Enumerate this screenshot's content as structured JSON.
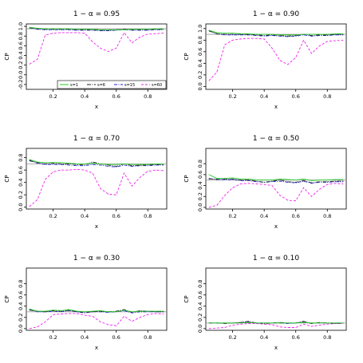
{
  "colors": {
    "s1": "#22cc22",
    "s6": "#222222",
    "s15": "#2222dd",
    "s60": "#ee22ee",
    "refline": "#9a9a9a",
    "axis": "#000000"
  },
  "chart_data": [
    {
      "type": "line",
      "title": "1 − α = 0.95",
      "xlabel": "x",
      "ylabel": "CP",
      "xlim": [
        0.03,
        0.92
      ],
      "ylim": [
        -0.3,
        1.05
      ],
      "yticks": [
        -0.2,
        0.0,
        0.2,
        0.4,
        0.6,
        0.8,
        1.0
      ],
      "ytick_labels": [
        "-0.2",
        "0.0",
        "0.2",
        "0.4",
        "0.6",
        "0.8",
        "1.0"
      ],
      "xticks": [
        0.2,
        0.4,
        0.6,
        0.8
      ],
      "xtick_labels": [
        "0.2",
        "0.4",
        "0.6",
        "0.8"
      ],
      "reference": 0.95,
      "legend": {
        "placement": "bottom-right",
        "entries": [
          {
            "series": "s1",
            "label": "s=1"
          },
          {
            "series": "s6",
            "label": "s=6"
          },
          {
            "series": "s15",
            "label": "s=15"
          },
          {
            "series": "s60",
            "label": "s=60"
          }
        ]
      },
      "x": [
        0.05,
        0.1,
        0.15,
        0.2,
        0.25,
        0.3,
        0.35,
        0.4,
        0.45,
        0.5,
        0.55,
        0.6,
        0.65,
        0.7,
        0.75,
        0.8,
        0.85,
        0.9
      ],
      "series": [
        {
          "key": "s1",
          "values": [
            0.98,
            0.96,
            0.95,
            0.95,
            0.95,
            0.95,
            0.94,
            0.94,
            0.94,
            0.93,
            0.93,
            0.93,
            0.93,
            0.94,
            0.94,
            0.94,
            0.95,
            0.95
          ]
        },
        {
          "key": "s6",
          "values": [
            0.97,
            0.95,
            0.94,
            0.94,
            0.94,
            0.94,
            0.93,
            0.93,
            0.93,
            0.92,
            0.92,
            0.93,
            0.94,
            0.93,
            0.93,
            0.93,
            0.94,
            0.94
          ]
        },
        {
          "key": "s15",
          "values": [
            0.97,
            0.94,
            0.93,
            0.93,
            0.93,
            0.93,
            0.92,
            0.92,
            0.92,
            0.91,
            0.91,
            0.92,
            0.93,
            0.92,
            0.92,
            0.92,
            0.93,
            0.93
          ]
        },
        {
          "key": "s60",
          "values": [
            0.22,
            0.32,
            0.82,
            0.86,
            0.87,
            0.87,
            0.87,
            0.86,
            0.68,
            0.55,
            0.48,
            0.55,
            0.87,
            0.66,
            0.78,
            0.84,
            0.85,
            0.86
          ]
        }
      ]
    },
    {
      "type": "line",
      "title": "1 − α = 0.90",
      "xlabel": "x",
      "ylabel": "CP",
      "xlim": [
        0.03,
        0.92
      ],
      "ylim": [
        -0.05,
        1.08
      ],
      "yticks": [
        0.0,
        0.2,
        0.4,
        0.6,
        0.8,
        1.0
      ],
      "ytick_labels": [
        "0.0",
        "0.2",
        "0.4",
        "0.6",
        "0.8",
        "1.0"
      ],
      "xticks": [
        0.2,
        0.4,
        0.6,
        0.8
      ],
      "xtick_labels": [
        "0.2",
        "0.4",
        "0.6",
        "0.8"
      ],
      "reference": 0.9,
      "x": [
        0.05,
        0.1,
        0.15,
        0.2,
        0.25,
        0.3,
        0.35,
        0.4,
        0.45,
        0.5,
        0.55,
        0.6,
        0.65,
        0.7,
        0.75,
        0.8,
        0.85,
        0.9
      ],
      "series": [
        {
          "key": "s1",
          "values": [
            0.97,
            0.93,
            0.92,
            0.92,
            0.91,
            0.91,
            0.9,
            0.9,
            0.9,
            0.89,
            0.89,
            0.89,
            0.9,
            0.9,
            0.9,
            0.9,
            0.91,
            0.91
          ]
        },
        {
          "key": "s6",
          "values": [
            0.96,
            0.91,
            0.9,
            0.9,
            0.9,
            0.9,
            0.89,
            0.88,
            0.89,
            0.88,
            0.87,
            0.88,
            0.9,
            0.88,
            0.89,
            0.89,
            0.9,
            0.9
          ]
        },
        {
          "key": "s15",
          "values": [
            0.96,
            0.91,
            0.89,
            0.89,
            0.89,
            0.89,
            0.88,
            0.87,
            0.88,
            0.87,
            0.86,
            0.87,
            0.89,
            0.87,
            0.88,
            0.88,
            0.89,
            0.89
          ]
        },
        {
          "key": "s60",
          "values": [
            0.1,
            0.25,
            0.72,
            0.8,
            0.82,
            0.83,
            0.83,
            0.82,
            0.66,
            0.45,
            0.38,
            0.5,
            0.8,
            0.57,
            0.7,
            0.78,
            0.79,
            0.8
          ]
        }
      ]
    },
    {
      "type": "line",
      "title": "1 − α = 0.70",
      "xlabel": "x",
      "ylabel": "CP",
      "xlim": [
        0.03,
        0.92
      ],
      "ylim": [
        -0.03,
        0.95
      ],
      "yticks": [
        0.0,
        0.2,
        0.4,
        0.6,
        0.8
      ],
      "ytick_labels": [
        "0.0",
        "0.2",
        "0.4",
        "0.6",
        "0.8"
      ],
      "xticks": [
        0.2,
        0.4,
        0.6,
        0.8
      ],
      "xtick_labels": [
        "0.2",
        "0.4",
        "0.6",
        "0.8"
      ],
      "reference": 0.7,
      "x": [
        0.05,
        0.1,
        0.15,
        0.2,
        0.25,
        0.3,
        0.35,
        0.4,
        0.45,
        0.5,
        0.55,
        0.6,
        0.65,
        0.7,
        0.75,
        0.8,
        0.85,
        0.9
      ],
      "series": [
        {
          "key": "s1",
          "values": [
            0.77,
            0.73,
            0.72,
            0.72,
            0.72,
            0.71,
            0.7,
            0.7,
            0.71,
            0.7,
            0.69,
            0.69,
            0.7,
            0.69,
            0.69,
            0.69,
            0.7,
            0.7
          ]
        },
        {
          "key": "s6",
          "values": [
            0.75,
            0.72,
            0.7,
            0.71,
            0.7,
            0.7,
            0.69,
            0.68,
            0.73,
            0.7,
            0.68,
            0.66,
            0.7,
            0.67,
            0.68,
            0.68,
            0.69,
            0.69
          ]
        },
        {
          "key": "s15",
          "values": [
            0.76,
            0.71,
            0.69,
            0.69,
            0.69,
            0.68,
            0.67,
            0.67,
            0.69,
            0.68,
            0.66,
            0.65,
            0.68,
            0.66,
            0.67,
            0.67,
            0.68,
            0.68
          ]
        },
        {
          "key": "s60",
          "values": [
            0.01,
            0.12,
            0.45,
            0.57,
            0.6,
            0.6,
            0.61,
            0.6,
            0.55,
            0.3,
            0.21,
            0.2,
            0.55,
            0.34,
            0.48,
            0.58,
            0.6,
            0.59
          ]
        }
      ]
    },
    {
      "type": "line",
      "title": "1 − α = 0.50",
      "xlabel": "x",
      "ylabel": "CP",
      "xlim": [
        0.03,
        0.92
      ],
      "ylim": [
        -0.03,
        1.08
      ],
      "yticks": [
        0.0,
        0.2,
        0.4,
        0.6,
        0.8
      ],
      "ytick_labels": [
        "0.0",
        "0.2",
        "0.4",
        "0.6",
        "0.8"
      ],
      "xticks": [
        0.2,
        0.4,
        0.6,
        0.8
      ],
      "xtick_labels": [
        "0.2",
        "0.4",
        "0.6",
        "0.8"
      ],
      "reference": 0.5,
      "x": [
        0.05,
        0.1,
        0.15,
        0.2,
        0.25,
        0.3,
        0.35,
        0.4,
        0.45,
        0.5,
        0.55,
        0.6,
        0.65,
        0.7,
        0.75,
        0.8,
        0.85,
        0.9
      ],
      "series": [
        {
          "key": "s1",
          "values": [
            0.6,
            0.53,
            0.53,
            0.54,
            0.52,
            0.52,
            0.5,
            0.5,
            0.5,
            0.52,
            0.51,
            0.5,
            0.52,
            0.49,
            0.5,
            0.5,
            0.51,
            0.51
          ]
        },
        {
          "key": "s6",
          "values": [
            0.52,
            0.52,
            0.52,
            0.52,
            0.5,
            0.5,
            0.48,
            0.46,
            0.48,
            0.5,
            0.47,
            0.46,
            0.49,
            0.45,
            0.47,
            0.47,
            0.48,
            0.48
          ]
        },
        {
          "key": "s15",
          "values": [
            0.53,
            0.51,
            0.51,
            0.51,
            0.49,
            0.49,
            0.47,
            0.46,
            0.47,
            0.48,
            0.46,
            0.45,
            0.48,
            0.44,
            0.46,
            0.46,
            0.47,
            0.47
          ]
        },
        {
          "key": "s60",
          "values": [
            0.0,
            0.04,
            0.22,
            0.36,
            0.43,
            0.44,
            0.43,
            0.42,
            0.4,
            0.22,
            0.13,
            0.12,
            0.36,
            0.2,
            0.33,
            0.42,
            0.44,
            0.43
          ]
        }
      ]
    },
    {
      "type": "line",
      "title": "1 − α = 0.30",
      "xlabel": "x",
      "ylabel": "CP",
      "xlim": [
        0.03,
        0.92
      ],
      "ylim": [
        -0.03,
        1.08
      ],
      "yticks": [
        0.0,
        0.2,
        0.4,
        0.6,
        0.8
      ],
      "ytick_labels": [
        "0.0",
        "0.2",
        "0.4",
        "0.6",
        "0.8"
      ],
      "xticks": [
        0.2,
        0.4,
        0.6,
        0.8
      ],
      "xtick_labels": [
        "0.2",
        "0.4",
        "0.6",
        "0.8"
      ],
      "reference": 0.3,
      "x": [
        0.05,
        0.1,
        0.15,
        0.2,
        0.25,
        0.3,
        0.35,
        0.4,
        0.45,
        0.5,
        0.55,
        0.6,
        0.65,
        0.7,
        0.75,
        0.8,
        0.85,
        0.9
      ],
      "series": [
        {
          "key": "s1",
          "values": [
            0.35,
            0.31,
            0.31,
            0.33,
            0.32,
            0.34,
            0.31,
            0.3,
            0.31,
            0.32,
            0.3,
            0.3,
            0.33,
            0.3,
            0.31,
            0.31,
            0.31,
            0.31
          ]
        },
        {
          "key": "s6",
          "values": [
            0.33,
            0.31,
            0.3,
            0.32,
            0.31,
            0.33,
            0.3,
            0.29,
            0.3,
            0.31,
            0.3,
            0.31,
            0.34,
            0.29,
            0.32,
            0.31,
            0.3,
            0.3
          ]
        },
        {
          "key": "s15",
          "values": [
            0.34,
            0.3,
            0.3,
            0.31,
            0.3,
            0.32,
            0.3,
            0.28,
            0.3,
            0.3,
            0.29,
            0.3,
            0.32,
            0.28,
            0.3,
            0.3,
            0.3,
            0.3
          ]
        },
        {
          "key": "s60",
          "values": [
            0.0,
            0.03,
            0.12,
            0.25,
            0.26,
            0.27,
            0.27,
            0.24,
            0.22,
            0.12,
            0.07,
            0.05,
            0.22,
            0.13,
            0.2,
            0.25,
            0.27,
            0.26
          ]
        }
      ]
    },
    {
      "type": "line",
      "title": "1 − α = 0.10",
      "xlabel": "x",
      "ylabel": "CP",
      "xlim": [
        0.03,
        0.92
      ],
      "ylim": [
        -0.03,
        1.08
      ],
      "yticks": [
        0.0,
        0.2,
        0.4,
        0.6,
        0.8
      ],
      "ytick_labels": [
        "0.0",
        "0.2",
        "0.4",
        "0.6",
        "0.8"
      ],
      "xticks": [
        0.2,
        0.4,
        0.6,
        0.8
      ],
      "xtick_labels": [
        "0.2",
        "0.4",
        "0.6",
        "0.8"
      ],
      "reference": 0.1,
      "x": [
        0.05,
        0.1,
        0.15,
        0.2,
        0.25,
        0.3,
        0.35,
        0.4,
        0.45,
        0.5,
        0.55,
        0.6,
        0.65,
        0.7,
        0.75,
        0.8,
        0.85,
        0.9
      ],
      "series": [
        {
          "key": "s1",
          "values": [
            0.1,
            0.1,
            0.1,
            0.1,
            0.1,
            0.11,
            0.1,
            0.1,
            0.1,
            0.1,
            0.1,
            0.1,
            0.11,
            0.1,
            0.1,
            0.1,
            0.1,
            0.1
          ]
        },
        {
          "key": "s6",
          "values": [
            0.1,
            0.1,
            0.09,
            0.1,
            0.11,
            0.13,
            0.1,
            0.09,
            0.1,
            0.11,
            0.1,
            0.1,
            0.13,
            0.09,
            0.11,
            0.1,
            0.09,
            0.1
          ]
        },
        {
          "key": "s15",
          "values": [
            0.1,
            0.1,
            0.1,
            0.1,
            0.11,
            0.12,
            0.1,
            0.1,
            0.1,
            0.1,
            0.09,
            0.1,
            0.12,
            0.1,
            0.1,
            0.1,
            0.1,
            0.1
          ]
        },
        {
          "key": "s60",
          "values": [
            0.0,
            0.01,
            0.02,
            0.06,
            0.08,
            0.09,
            0.09,
            0.08,
            0.07,
            0.03,
            0.02,
            0.02,
            0.08,
            0.04,
            0.06,
            0.08,
            0.09,
            0.09
          ]
        }
      ]
    }
  ]
}
